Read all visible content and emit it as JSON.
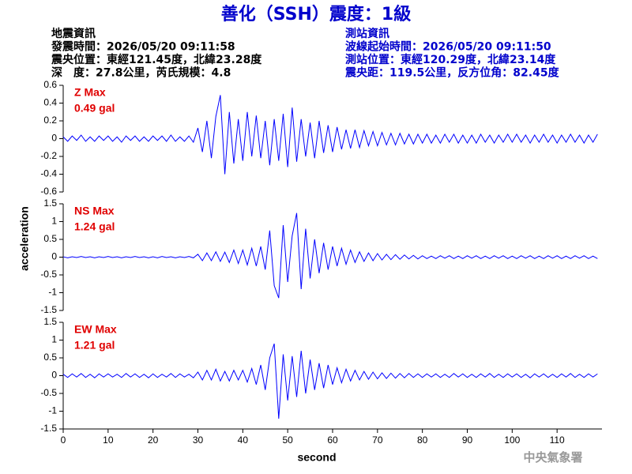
{
  "chart_data": {
    "type": "line",
    "title": "善化（SSH）震度：1級",
    "info_left": [
      "地震資訊",
      "發震時間：2026/05/20 09:11:58",
      "震央位置：東經121.45度，北緯23.28度",
      "深　度：27.8公里，芮氏規模：4.8"
    ],
    "info_right": [
      "測站資訊",
      "波線起始時間：2026/05/20 09:11:50",
      "測站位置：東經120.29度，北緯23.14度",
      "震央距：119.5公里，反方位角：82.45度"
    ],
    "footer": "中央氣象署",
    "xlabel": "second",
    "ylabel": "acceleration",
    "xlim": [
      0,
      120
    ],
    "xticks": [
      0,
      10,
      20,
      30,
      40,
      50,
      60,
      70,
      80,
      90,
      100,
      110
    ],
    "x": [
      0,
      1,
      2,
      3,
      4,
      5,
      6,
      7,
      8,
      9,
      10,
      11,
      12,
      13,
      14,
      15,
      16,
      17,
      18,
      19,
      20,
      21,
      22,
      23,
      24,
      25,
      26,
      27,
      28,
      29,
      30,
      31,
      32,
      33,
      34,
      35,
      36,
      37,
      38,
      39,
      40,
      41,
      42,
      43,
      44,
      45,
      46,
      47,
      48,
      49,
      50,
      51,
      52,
      53,
      54,
      55,
      56,
      57,
      58,
      59,
      60,
      61,
      62,
      63,
      64,
      65,
      66,
      67,
      68,
      69,
      70,
      71,
      72,
      73,
      74,
      75,
      76,
      77,
      78,
      79,
      80,
      81,
      82,
      83,
      84,
      85,
      86,
      87,
      88,
      89,
      90,
      91,
      92,
      93,
      94,
      95,
      96,
      97,
      98,
      99,
      100,
      101,
      102,
      103,
      104,
      105,
      106,
      107,
      108,
      109,
      110,
      111,
      112,
      113,
      114,
      115,
      116,
      117,
      118,
      119
    ],
    "series": [
      {
        "name": "Z Max",
        "annotation": "0.49 gal",
        "color": "#0000ff",
        "ylim": [
          -0.6,
          0.6
        ],
        "yticks": [
          -0.6,
          -0.4,
          -0.2,
          0,
          0.2,
          0.4,
          0.6
        ],
        "values": [
          0.02,
          -0.03,
          0.03,
          -0.02,
          0.04,
          -0.03,
          0.02,
          -0.03,
          0.03,
          -0.02,
          0.03,
          -0.03,
          0.02,
          -0.04,
          0.03,
          -0.02,
          0.03,
          -0.03,
          0.02,
          -0.03,
          0.03,
          -0.02,
          0.03,
          -0.03,
          0.04,
          -0.03,
          0.02,
          -0.03,
          0.03,
          -0.04,
          0.12,
          -0.15,
          0.2,
          -0.22,
          0.25,
          0.49,
          -0.4,
          0.3,
          -0.28,
          0.22,
          -0.25,
          0.3,
          -0.2,
          0.26,
          -0.22,
          0.2,
          -0.3,
          0.22,
          -0.25,
          0.28,
          -0.32,
          0.35,
          -0.26,
          0.22,
          -0.2,
          0.18,
          -0.22,
          0.2,
          -0.16,
          0.15,
          -0.15,
          0.13,
          -0.12,
          0.1,
          -0.11,
          0.1,
          -0.1,
          0.09,
          -0.08,
          0.08,
          -0.08,
          0.07,
          -0.07,
          0.06,
          -0.07,
          0.06,
          -0.06,
          0.05,
          -0.06,
          0.05,
          -0.05,
          0.05,
          -0.05,
          0.04,
          -0.05,
          0.05,
          -0.04,
          0.05,
          -0.05,
          0.04,
          -0.05,
          0.04,
          -0.05,
          0.05,
          -0.04,
          0.04,
          -0.05,
          0.04,
          -0.04,
          0.05,
          -0.04,
          0.05,
          -0.04,
          0.04,
          -0.05,
          0.04,
          -0.04,
          0.05,
          -0.04,
          0.04,
          -0.05,
          0.04,
          -0.04,
          0.05,
          -0.04,
          0.04,
          -0.05,
          0.04,
          -0.04,
          0.05
        ]
      },
      {
        "name": "NS Max",
        "annotation": "1.24 gal",
        "color": "#0000ff",
        "ylim": [
          -1.5,
          1.5
        ],
        "yticks": [
          -1.5,
          -1,
          -0.5,
          0,
          0.5,
          1,
          1.5
        ],
        "values": [
          0.01,
          -0.02,
          0.01,
          -0.01,
          0.02,
          -0.01,
          0.01,
          -0.02,
          0.01,
          -0.01,
          0.02,
          -0.01,
          0.01,
          -0.02,
          0.01,
          -0.01,
          0.02,
          -0.01,
          0.01,
          -0.02,
          0.01,
          -0.02,
          0.02,
          -0.01,
          0.01,
          -0.02,
          0.01,
          -0.01,
          0.02,
          -0.02,
          0.08,
          -0.1,
          0.12,
          -0.1,
          0.15,
          -0.12,
          0.14,
          -0.15,
          0.2,
          -0.18,
          0.2,
          -0.22,
          0.25,
          -0.25,
          0.3,
          -0.35,
          0.75,
          -0.8,
          -1.15,
          0.9,
          -0.7,
          0.6,
          1.24,
          -0.9,
          0.8,
          -0.6,
          0.5,
          -0.45,
          0.4,
          -0.35,
          0.3,
          -0.25,
          0.25,
          -0.2,
          0.2,
          -0.15,
          0.15,
          -0.12,
          0.12,
          -0.1,
          0.1,
          -0.08,
          0.08,
          -0.07,
          0.07,
          -0.06,
          0.06,
          -0.05,
          0.05,
          -0.05,
          0.04,
          -0.04,
          0.03,
          -0.04,
          0.04,
          -0.03,
          0.04,
          -0.04,
          0.03,
          -0.04,
          0.04,
          -0.03,
          0.04,
          -0.04,
          0.03,
          -0.04,
          0.04,
          -0.03,
          0.04,
          -0.04,
          0.03,
          -0.04,
          0.04,
          -0.03,
          0.04,
          -0.04,
          0.03,
          -0.04,
          0.04,
          -0.03,
          0.04,
          -0.04,
          0.03,
          -0.04,
          0.04,
          -0.03,
          0.04,
          -0.04,
          0.03,
          -0.04
        ]
      },
      {
        "name": "EW Max",
        "annotation": "1.21 gal",
        "color": "#0000ff",
        "ylim": [
          -1.5,
          1.5
        ],
        "yticks": [
          -1.5,
          -1,
          -0.5,
          0,
          0.5,
          1,
          1.5
        ],
        "values": [
          0.04,
          -0.05,
          0.05,
          -0.04,
          0.06,
          -0.05,
          0.04,
          -0.06,
          0.05,
          -0.04,
          0.05,
          -0.04,
          0.04,
          -0.05,
          0.06,
          -0.04,
          0.05,
          -0.05,
          0.04,
          -0.06,
          0.05,
          -0.05,
          0.04,
          -0.04,
          0.06,
          -0.05,
          0.05,
          -0.04,
          0.04,
          -0.06,
          0.1,
          -0.12,
          0.15,
          -0.12,
          0.18,
          -0.15,
          0.12,
          -0.15,
          0.15,
          -0.12,
          0.15,
          -0.18,
          0.2,
          -0.25,
          0.3,
          -0.4,
          0.5,
          0.9,
          -1.21,
          0.6,
          -0.7,
          0.55,
          -0.6,
          0.7,
          -0.5,
          0.45,
          -0.4,
          0.35,
          -0.35,
          0.3,
          -0.25,
          0.22,
          -0.2,
          0.18,
          -0.15,
          0.15,
          -0.12,
          0.12,
          -0.1,
          0.1,
          -0.09,
          0.08,
          -0.08,
          0.07,
          -0.07,
          0.06,
          -0.06,
          0.06,
          -0.05,
          0.05,
          -0.05,
          0.05,
          -0.04,
          0.05,
          -0.05,
          0.04,
          -0.05,
          0.06,
          -0.04,
          0.05,
          -0.05,
          0.04,
          -0.05,
          0.05,
          -0.04,
          0.06,
          -0.05,
          0.04,
          -0.05,
          0.05,
          -0.04,
          0.05,
          -0.05,
          0.04,
          -0.06,
          0.05,
          -0.04,
          0.05,
          -0.05,
          0.04,
          -0.05,
          0.05,
          -0.04,
          0.06,
          -0.05,
          0.04,
          -0.05,
          0.05,
          -0.04,
          0.05
        ]
      }
    ]
  }
}
